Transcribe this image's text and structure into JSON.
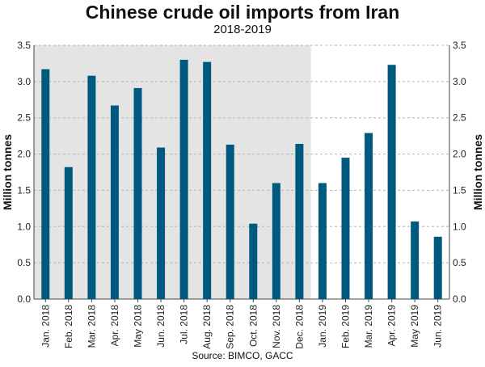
{
  "chart_data": {
    "type": "bar",
    "title": "Chinese crude oil imports from Iran",
    "subtitle": "2018-2019",
    "ylabel": "Million tonnes",
    "ylabel_right": "Million tonnes",
    "source": "Source: BIMCO, GACC",
    "ylim": [
      0,
      3.5
    ],
    "yticks": [
      "0.0",
      "0.5",
      "1.0",
      "1.5",
      "2.0",
      "2.5",
      "3.0",
      "3.5"
    ],
    "grid": "horizontal dashed",
    "highlight": "2018 months shaded grey",
    "categories": [
      "Jan. 2018",
      "Feb. 2018",
      "Mar. 2018",
      "Apr. 2018",
      "May 2018",
      "Jun. 2018",
      "Jul. 2018",
      "Aug. 2018",
      "Sep. 2018",
      "Oct. 2018",
      "Nov. 2018",
      "Dec. 2018",
      "Jan. 2019",
      "Feb. 2019",
      "Mar. 2019",
      "Apr. 2019",
      "May 2019",
      "Jun. 2019"
    ],
    "values": [
      3.17,
      1.82,
      3.08,
      2.67,
      2.91,
      2.09,
      3.3,
      3.27,
      2.13,
      1.04,
      1.6,
      2.14,
      1.6,
      1.95,
      2.29,
      3.23,
      1.07,
      0.86
    ],
    "colors": {
      "bar": "#005a7f",
      "shade": "#e4e4e4",
      "grid": "#b5b5b5"
    }
  }
}
